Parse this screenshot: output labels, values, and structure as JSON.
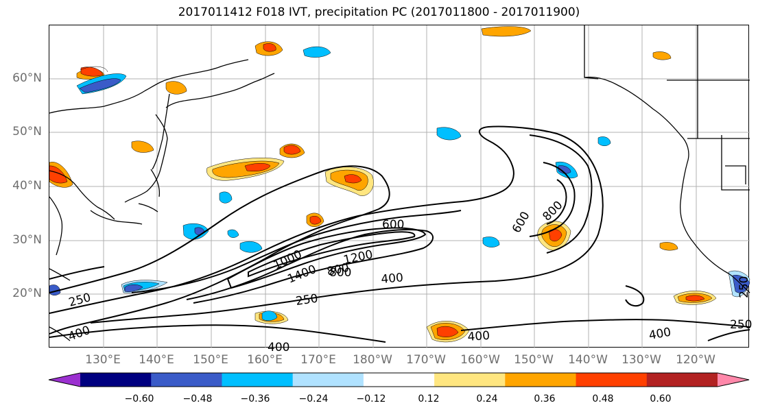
{
  "title": "2017011412 F018 IVT, precipitation PC (2017011800 - 2017011900)",
  "lat_labels": [
    "60°N",
    "50°N",
    "40°N",
    "30°N",
    "20°N"
  ],
  "lon_labels": [
    "130°E",
    "140°E",
    "150°E",
    "160°E",
    "170°E",
    "180°W",
    "170°W",
    "160°W",
    "150°W",
    "140°W",
    "130°W",
    "120°W"
  ],
  "contour_labels": [
    "250",
    "400",
    "600",
    "800",
    "1000",
    "1200",
    "1400",
    "800",
    "400",
    "250",
    "600",
    "800",
    "400",
    "400",
    "250",
    "250",
    "400"
  ],
  "colorbar": {
    "ticks": [
      "−0.60",
      "−0.48",
      "−0.36",
      "−0.24",
      "−0.12",
      "0.12",
      "0.24",
      "0.36",
      "0.48",
      "0.60"
    ],
    "colors": [
      "#9b30d0",
      "#000080",
      "#3a5bc8",
      "#00bfff",
      "#b0e2ff",
      "#ffffff",
      "#ffe680",
      "#ffa500",
      "#ff4000",
      "#b22222",
      "#ff88aa"
    ]
  }
}
